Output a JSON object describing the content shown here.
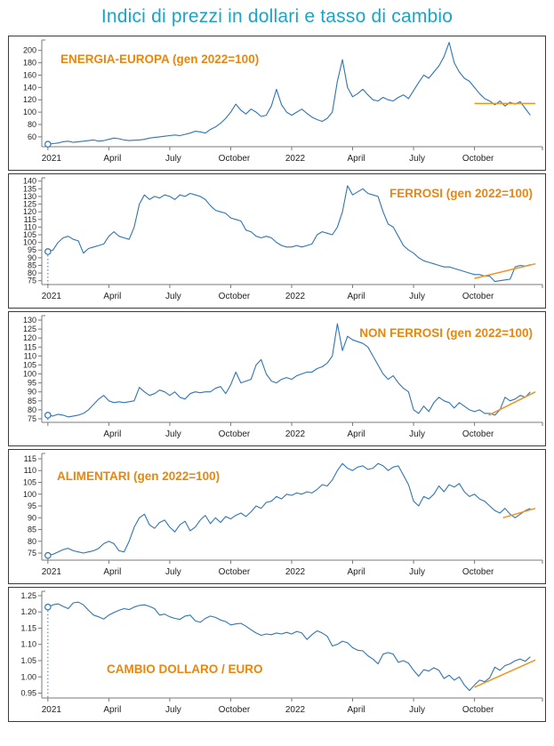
{
  "title": "Indici di prezzi in dollari e tasso di cambio",
  "colors": {
    "title": "#1BA4C7",
    "line": "#2E75B5",
    "trend": "#F0921E",
    "series_label": "#E8860D",
    "axis": "#7a7a7a",
    "tick_text": "#1f1f1f",
    "panel_border": "#3b3b3b",
    "background": "#ffffff"
  },
  "x_axis_note": "x in months since Jan 2021, weekly samples (step 0.25), span Jan 2021 - Dec 2022",
  "chart_data": [
    {
      "type": "line",
      "label": "ENERGIA-EUROPA (gen 2022=100)",
      "ylim": [
        44,
        214
      ],
      "ydec": 0,
      "yticks": [
        60,
        80,
        100,
        120,
        140,
        160,
        180,
        200
      ],
      "xticks": [
        {
          "pos": 0,
          "label": "2021"
        },
        {
          "pos": 3,
          "label": "April"
        },
        {
          "pos": 6,
          "label": "July"
        },
        {
          "pos": 9,
          "label": "October"
        },
        {
          "pos": 12,
          "label": "2022"
        },
        {
          "pos": 15,
          "label": "April"
        },
        {
          "pos": 18,
          "label": "July"
        },
        {
          "pos": 21,
          "label": "October"
        }
      ],
      "x_step": 0.25,
      "values": [
        48,
        49,
        50,
        52,
        53,
        51,
        52,
        53,
        54,
        55,
        53,
        54,
        56,
        58,
        57,
        55,
        54,
        54.5,
        55,
        56,
        58,
        59,
        60,
        61,
        62,
        63,
        62,
        64,
        66,
        69,
        68,
        66,
        72,
        76,
        82,
        90,
        100,
        113,
        103,
        97,
        105,
        100,
        93,
        95,
        110,
        137,
        112,
        100,
        95,
        100,
        105,
        98,
        92,
        88,
        85,
        90,
        100,
        150,
        185,
        140,
        125,
        130,
        137,
        128,
        120,
        118,
        124,
        120,
        118,
        124,
        128,
        122,
        135,
        148,
        160,
        155,
        165,
        175,
        190,
        213,
        180,
        165,
        155,
        150,
        140,
        130,
        122,
        118,
        112,
        118,
        110,
        116,
        113,
        117,
        106,
        95
      ],
      "trend": {
        "x": [
          21,
          24
        ],
        "y": [
          114,
          114
        ]
      }
    },
    {
      "type": "line",
      "label": "FERROSI (gen 2022=100)",
      "ylim": [
        72.5,
        141
      ],
      "ydec": 0,
      "yticks": [
        75,
        80,
        85,
        90,
        95,
        100,
        105,
        110,
        115,
        120,
        125,
        130,
        135,
        140
      ],
      "xticks": [
        {
          "pos": 0,
          "label": "2021"
        },
        {
          "pos": 3,
          "label": "April"
        },
        {
          "pos": 6,
          "label": "July"
        },
        {
          "pos": 9,
          "label": "October"
        },
        {
          "pos": 12,
          "label": "2022"
        },
        {
          "pos": 15,
          "label": "April"
        },
        {
          "pos": 18,
          "label": "July"
        },
        {
          "pos": 21,
          "label": "October"
        }
      ],
      "x_step": 0.25,
      "values": [
        94,
        95,
        100,
        103,
        104,
        102,
        101,
        93,
        96,
        97,
        98,
        99,
        104,
        107,
        104,
        103,
        102,
        110,
        125,
        131,
        128,
        130,
        129,
        131,
        130,
        128,
        131,
        130,
        132,
        131,
        130,
        128,
        124,
        121,
        120,
        119,
        116,
        115,
        114,
        108,
        107,
        104,
        103,
        104,
        103,
        100,
        98,
        97,
        97,
        98,
        97,
        98,
        99,
        105,
        107,
        106,
        105,
        110,
        120,
        137,
        131,
        133,
        135,
        132,
        131,
        130,
        120,
        112,
        110,
        104,
        98,
        95,
        93,
        90,
        88,
        87,
        86,
        85,
        84,
        84,
        83,
        82,
        81,
        80,
        79,
        79,
        78,
        78,
        74.5,
        75,
        75.5,
        76,
        84,
        85,
        84.5,
        85.5
      ],
      "trend": {
        "x": [
          21,
          24
        ],
        "y": [
          76.5,
          86
        ]
      }
    },
    {
      "type": "line",
      "label": "NON FERROSI (gen 2022=100)",
      "ylim": [
        73,
        131.5
      ],
      "ydec": 0,
      "yticks": [
        75,
        80,
        85,
        90,
        95,
        100,
        105,
        110,
        115,
        120,
        125,
        130
      ],
      "xticks": [
        {
          "pos": 0,
          "label": ""
        },
        {
          "pos": 3,
          "label": "April"
        },
        {
          "pos": 6,
          "label": "July"
        },
        {
          "pos": 9,
          "label": "October"
        },
        {
          "pos": 12,
          "label": "2022"
        },
        {
          "pos": 15,
          "label": "April"
        },
        {
          "pos": 18,
          "label": "July"
        },
        {
          "pos": 21,
          "label": "October"
        }
      ],
      "x_step": 0.25,
      "values": [
        77,
        76.5,
        77.5,
        77,
        76,
        76.5,
        77,
        78,
        80,
        83,
        86,
        88,
        85,
        84,
        84.5,
        84,
        84.5,
        85,
        92.5,
        90,
        88,
        89,
        91,
        90,
        88,
        90,
        87,
        86,
        89,
        90,
        89.5,
        90,
        90,
        92,
        93,
        89,
        94,
        101,
        95,
        96,
        97,
        105,
        108,
        100,
        96,
        95,
        97,
        98,
        97,
        99,
        100,
        101,
        101,
        103,
        104,
        106,
        110,
        128,
        113,
        121,
        119,
        118,
        117,
        115,
        110,
        105,
        100,
        97,
        99,
        95,
        92,
        90,
        80,
        78,
        82,
        79,
        84,
        87,
        85,
        84,
        81,
        84,
        82,
        80,
        79,
        80,
        78,
        78,
        77,
        80,
        87,
        85,
        86,
        88,
        87,
        90
      ],
      "trend": {
        "x": [
          21.7,
          24
        ],
        "y": [
          77,
          90
        ]
      }
    },
    {
      "type": "line",
      "label": "ALIMENTARI (gen 2022=100)",
      "ylim": [
        72,
        116.5
      ],
      "ydec": 0,
      "yticks": [
        75,
        80,
        85,
        90,
        95,
        100,
        105,
        110,
        115
      ],
      "xticks": [
        {
          "pos": 0,
          "label": "2021"
        },
        {
          "pos": 3,
          "label": "April"
        },
        {
          "pos": 6,
          "label": "July"
        },
        {
          "pos": 9,
          "label": "October"
        },
        {
          "pos": 12,
          "label": "2022"
        },
        {
          "pos": 15,
          "label": "April"
        },
        {
          "pos": 18,
          "label": "July"
        },
        {
          "pos": 21,
          "label": "October"
        }
      ],
      "x_step": 0.25,
      "values": [
        74,
        74.5,
        75.5,
        76.5,
        77,
        76,
        75.5,
        75,
        75.5,
        76,
        77,
        79,
        80,
        79,
        76,
        75.5,
        80,
        86,
        90,
        91.5,
        87,
        85.5,
        88,
        89,
        86,
        84,
        87,
        88.5,
        84.5,
        86,
        89,
        91,
        87.5,
        90,
        88,
        90.5,
        89.5,
        91,
        92,
        90.5,
        92.5,
        95,
        94,
        96.5,
        97,
        99,
        98,
        100,
        99.5,
        100.5,
        100,
        101,
        100.5,
        102,
        104,
        103.5,
        106,
        110,
        113,
        111,
        110,
        111.5,
        112,
        110.5,
        111,
        113,
        112,
        110,
        111.5,
        112,
        108,
        104,
        97,
        95,
        99,
        98,
        100,
        103.5,
        101,
        104,
        103,
        104.5,
        101,
        99,
        100,
        98,
        97,
        95,
        93,
        92,
        94,
        91.5,
        90,
        91.5,
        93,
        94
      ],
      "trend": {
        "x": [
          22.4,
          24
        ],
        "y": [
          90,
          94
        ]
      }
    },
    {
      "type": "line",
      "label": "CAMBIO DOLLARO / EURO",
      "ylim": [
        0.935,
        1.258
      ],
      "ydec": 2,
      "yticks": [
        0.95,
        1.0,
        1.05,
        1.1,
        1.15,
        1.2,
        1.25
      ],
      "xticks": [
        {
          "pos": 0,
          "label": "2021"
        },
        {
          "pos": 3,
          "label": "April"
        },
        {
          "pos": 6,
          "label": "July"
        },
        {
          "pos": 9,
          "label": "October"
        },
        {
          "pos": 12,
          "label": "2022"
        },
        {
          "pos": 15,
          "label": "April"
        },
        {
          "pos": 18,
          "label": "July"
        },
        {
          "pos": 21,
          "label": "October"
        }
      ],
      "x_step": 0.25,
      "values": [
        1.215,
        1.222,
        1.225,
        1.217,
        1.21,
        1.228,
        1.23,
        1.222,
        1.205,
        1.19,
        1.185,
        1.178,
        1.19,
        1.198,
        1.205,
        1.21,
        1.207,
        1.215,
        1.22,
        1.222,
        1.217,
        1.21,
        1.19,
        1.193,
        1.185,
        1.18,
        1.177,
        1.187,
        1.19,
        1.173,
        1.168,
        1.18,
        1.187,
        1.183,
        1.175,
        1.17,
        1.16,
        1.163,
        1.165,
        1.156,
        1.145,
        1.135,
        1.128,
        1.132,
        1.13,
        1.135,
        1.132,
        1.137,
        1.132,
        1.14,
        1.135,
        1.115,
        1.13,
        1.142,
        1.135,
        1.125,
        1.095,
        1.1,
        1.11,
        1.105,
        1.09,
        1.082,
        1.08,
        1.065,
        1.055,
        1.04,
        1.07,
        1.075,
        1.07,
        1.045,
        1.05,
        1.042,
        1.02,
        1.002,
        1.022,
        1.018,
        1.028,
        1.02,
        0.995,
        1.005,
        0.99,
        1.0,
        0.975,
        0.958,
        0.975,
        0.99,
        0.985,
        0.997,
        1.03,
        1.02,
        1.035,
        1.04,
        1.05,
        1.055,
        1.048,
        1.062
      ],
      "trend": {
        "x": [
          21,
          24
        ],
        "y": [
          0.968,
          1.052
        ]
      }
    }
  ]
}
